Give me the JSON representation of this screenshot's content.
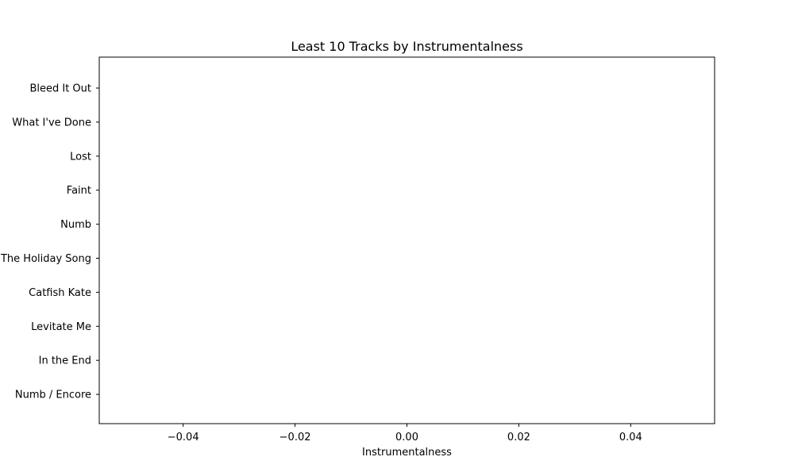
{
  "chart_data": {
    "type": "bar",
    "orientation": "horizontal",
    "title": "Least 10 Tracks by Instrumentalness",
    "xlabel": "Instrumentalness",
    "ylabel": "",
    "categories": [
      "Bleed It Out",
      "What I've Done",
      "Lost",
      "Faint",
      "Numb",
      "The Holiday Song",
      "Catfish Kate",
      "Levitate Me",
      "In the End",
      "Numb / Encore"
    ],
    "values": [
      0,
      0,
      0,
      0,
      0,
      0,
      0,
      0,
      0,
      0
    ],
    "xlim": [
      -0.055,
      0.055
    ],
    "xticks": [
      -0.04,
      -0.02,
      0.0,
      0.02,
      0.04
    ],
    "xtick_labels": [
      "−0.04",
      "−0.02",
      "0.00",
      "0.02",
      "0.04"
    ],
    "grid": false,
    "legend": "none",
    "colors": {
      "bar": "#1f77b4",
      "axes": "#000000",
      "background": "#ffffff"
    }
  }
}
